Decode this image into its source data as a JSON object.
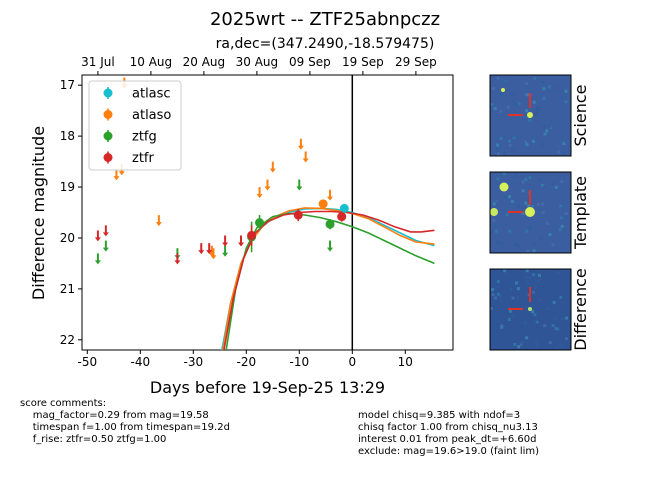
{
  "chart_data": {
    "type": "scatter",
    "title": "2025wrt -- ZTF25abnpczz",
    "subtitle": "ra,dec=(347.2490,-18.579475)",
    "xlabel": "Days before 19-Sep-25 13:29",
    "ylabel": "Difference magnitude",
    "xlim": [
      -51,
      19
    ],
    "ylim": [
      22.2,
      16.8
    ],
    "y_inverted": true,
    "x_ticks": [
      -50,
      -40,
      -30,
      -20,
      -10,
      0,
      10
    ],
    "y_ticks": [
      17,
      18,
      19,
      20,
      21,
      22
    ],
    "top_axis_ticks": [
      {
        "x": -48,
        "label": "31 Jul"
      },
      {
        "x": -38,
        "label": "10 Aug"
      },
      {
        "x": -28,
        "label": "20 Aug"
      },
      {
        "x": -18,
        "label": "30 Aug"
      },
      {
        "x": -8,
        "label": "09 Sep"
      },
      {
        "x": 2,
        "label": "19 Sep"
      },
      {
        "x": 12,
        "label": "29 Sep"
      }
    ],
    "vertical_line_x": 0,
    "legend_position": "upper-left",
    "grid": false,
    "series": [
      {
        "name": "atlasc",
        "color": "#17becf",
        "detections": [
          {
            "x": -1.5,
            "y": 19.42,
            "err": 0.05
          }
        ],
        "upper_limits": [],
        "fit": [
          {
            "x": -24.6,
            "y": 22.2
          },
          {
            "x": -23,
            "y": 21.3
          },
          {
            "x": -21,
            "y": 20.5
          },
          {
            "x": -19,
            "y": 20.05
          },
          {
            "x": -17,
            "y": 19.78
          },
          {
            "x": -15,
            "y": 19.62
          },
          {
            "x": -12,
            "y": 19.5
          },
          {
            "x": -9,
            "y": 19.43
          },
          {
            "x": -6,
            "y": 19.42
          },
          {
            "x": -3,
            "y": 19.44
          },
          {
            "x": 0,
            "y": 19.5
          },
          {
            "x": 3,
            "y": 19.6
          },
          {
            "x": 6,
            "y": 19.75
          },
          {
            "x": 9,
            "y": 19.9
          },
          {
            "x": 12,
            "y": 20.05
          },
          {
            "x": 15.5,
            "y": 20.15
          }
        ]
      },
      {
        "name": "atlaso",
        "color": "#ff7f0e",
        "detections": [
          {
            "x": -5.5,
            "y": 19.33,
            "err": 0.05
          }
        ],
        "upper_limits": [
          {
            "x": -44.5,
            "y": 18.75
          },
          {
            "x": -43.5,
            "y": 18.65
          },
          {
            "x": -43,
            "y": 16.95
          },
          {
            "x": -36.5,
            "y": 19.65
          },
          {
            "x": -26.5,
            "y": 20.25
          },
          {
            "x": -26.2,
            "y": 20.3
          },
          {
            "x": -17.5,
            "y": 19.1
          },
          {
            "x": -16,
            "y": 18.95
          },
          {
            "x": -15,
            "y": 18.6
          },
          {
            "x": -9.7,
            "y": 18.15
          },
          {
            "x": -8.8,
            "y": 18.4
          },
          {
            "x": -4.2,
            "y": 19.15
          }
        ],
        "fit": [
          {
            "x": -24.4,
            "y": 22.2
          },
          {
            "x": -23,
            "y": 21.3
          },
          {
            "x": -21,
            "y": 20.5
          },
          {
            "x": -19,
            "y": 20.05
          },
          {
            "x": -17,
            "y": 19.78
          },
          {
            "x": -15,
            "y": 19.6
          },
          {
            "x": -12,
            "y": 19.47
          },
          {
            "x": -9,
            "y": 19.41
          },
          {
            "x": -6,
            "y": 19.42
          },
          {
            "x": -3,
            "y": 19.46
          },
          {
            "x": 0,
            "y": 19.52
          },
          {
            "x": 3,
            "y": 19.62
          },
          {
            "x": 6,
            "y": 19.78
          },
          {
            "x": 9,
            "y": 19.95
          },
          {
            "x": 12,
            "y": 20.08
          },
          {
            "x": 15.5,
            "y": 20.12
          }
        ]
      },
      {
        "name": "ztfg",
        "color": "#2ca02c",
        "detections": [
          {
            "x": -19,
            "y": 19.98,
            "err": 0.3
          },
          {
            "x": -17.5,
            "y": 19.7,
            "err": 0.15
          },
          {
            "x": -4.2,
            "y": 19.73,
            "err": 0.1
          }
        ],
        "upper_limits": [
          {
            "x": -48,
            "y": 20.4
          },
          {
            "x": -46.5,
            "y": 20.15
          },
          {
            "x": -33,
            "y": 20.3
          },
          {
            "x": -24,
            "y": 20.25
          },
          {
            "x": -10,
            "y": 18.95
          },
          {
            "x": -4.2,
            "y": 20.15
          }
        ],
        "fit": [
          {
            "x": -23.8,
            "y": 22.2
          },
          {
            "x": -22,
            "y": 21.0
          },
          {
            "x": -20,
            "y": 20.2
          },
          {
            "x": -18,
            "y": 19.8
          },
          {
            "x": -15,
            "y": 19.58
          },
          {
            "x": -12,
            "y": 19.52
          },
          {
            "x": -9,
            "y": 19.55
          },
          {
            "x": -6,
            "y": 19.6
          },
          {
            "x": -3,
            "y": 19.68
          },
          {
            "x": 0,
            "y": 19.78
          },
          {
            "x": 3,
            "y": 19.9
          },
          {
            "x": 6,
            "y": 20.05
          },
          {
            "x": 9,
            "y": 20.2
          },
          {
            "x": 12,
            "y": 20.35
          },
          {
            "x": 15.5,
            "y": 20.5
          }
        ]
      },
      {
        "name": "ztfr",
        "color": "#d62728",
        "detections": [
          {
            "x": -19,
            "y": 19.95,
            "err": 0.2
          },
          {
            "x": -10.2,
            "y": 19.55,
            "err": 0.12
          },
          {
            "x": -2,
            "y": 19.58,
            "err": 0.1
          }
        ],
        "upper_limits": [
          {
            "x": -48,
            "y": 19.95
          },
          {
            "x": -46.5,
            "y": 19.85
          },
          {
            "x": -33,
            "y": 20.4
          },
          {
            "x": -28.5,
            "y": 20.2
          },
          {
            "x": -27,
            "y": 20.2
          },
          {
            "x": -24,
            "y": 20.05
          },
          {
            "x": -21,
            "y": 20.05
          }
        ],
        "fit": [
          {
            "x": -24.2,
            "y": 22.2
          },
          {
            "x": -22.5,
            "y": 21.2
          },
          {
            "x": -20.5,
            "y": 20.4
          },
          {
            "x": -18.5,
            "y": 19.92
          },
          {
            "x": -16,
            "y": 19.68
          },
          {
            "x": -13,
            "y": 19.55
          },
          {
            "x": -10,
            "y": 19.5
          },
          {
            "x": -7,
            "y": 19.48
          },
          {
            "x": -4,
            "y": 19.48
          },
          {
            "x": -1,
            "y": 19.5
          },
          {
            "x": 2,
            "y": 19.55
          },
          {
            "x": 5,
            "y": 19.65
          },
          {
            "x": 8,
            "y": 19.78
          },
          {
            "x": 11,
            "y": 19.88
          },
          {
            "x": 13,
            "y": 19.88
          },
          {
            "x": 15.5,
            "y": 19.85
          }
        ]
      }
    ]
  },
  "stamps": [
    {
      "label": "Science",
      "bg": "#3b5ea0"
    },
    {
      "label": "Template",
      "bg": "#3b5ea0"
    },
    {
      "label": "Difference",
      "bg": "#2f5596"
    }
  ],
  "notes_left": "score comments:\n    mag_factor=0.29 from mag=19.58\n    timespan f=1.00 from timespan=19.2d\n    f_rise: ztfr=0.50 ztfg=1.00",
  "notes_right": "model chisq=9.385 with ndof=3\nchisq factor 1.00 from chisq_nu3.13\ninterest 0.01 from peak_dt=+6.60d\nexclude: mag=19.6>19.0 (faint lim)"
}
